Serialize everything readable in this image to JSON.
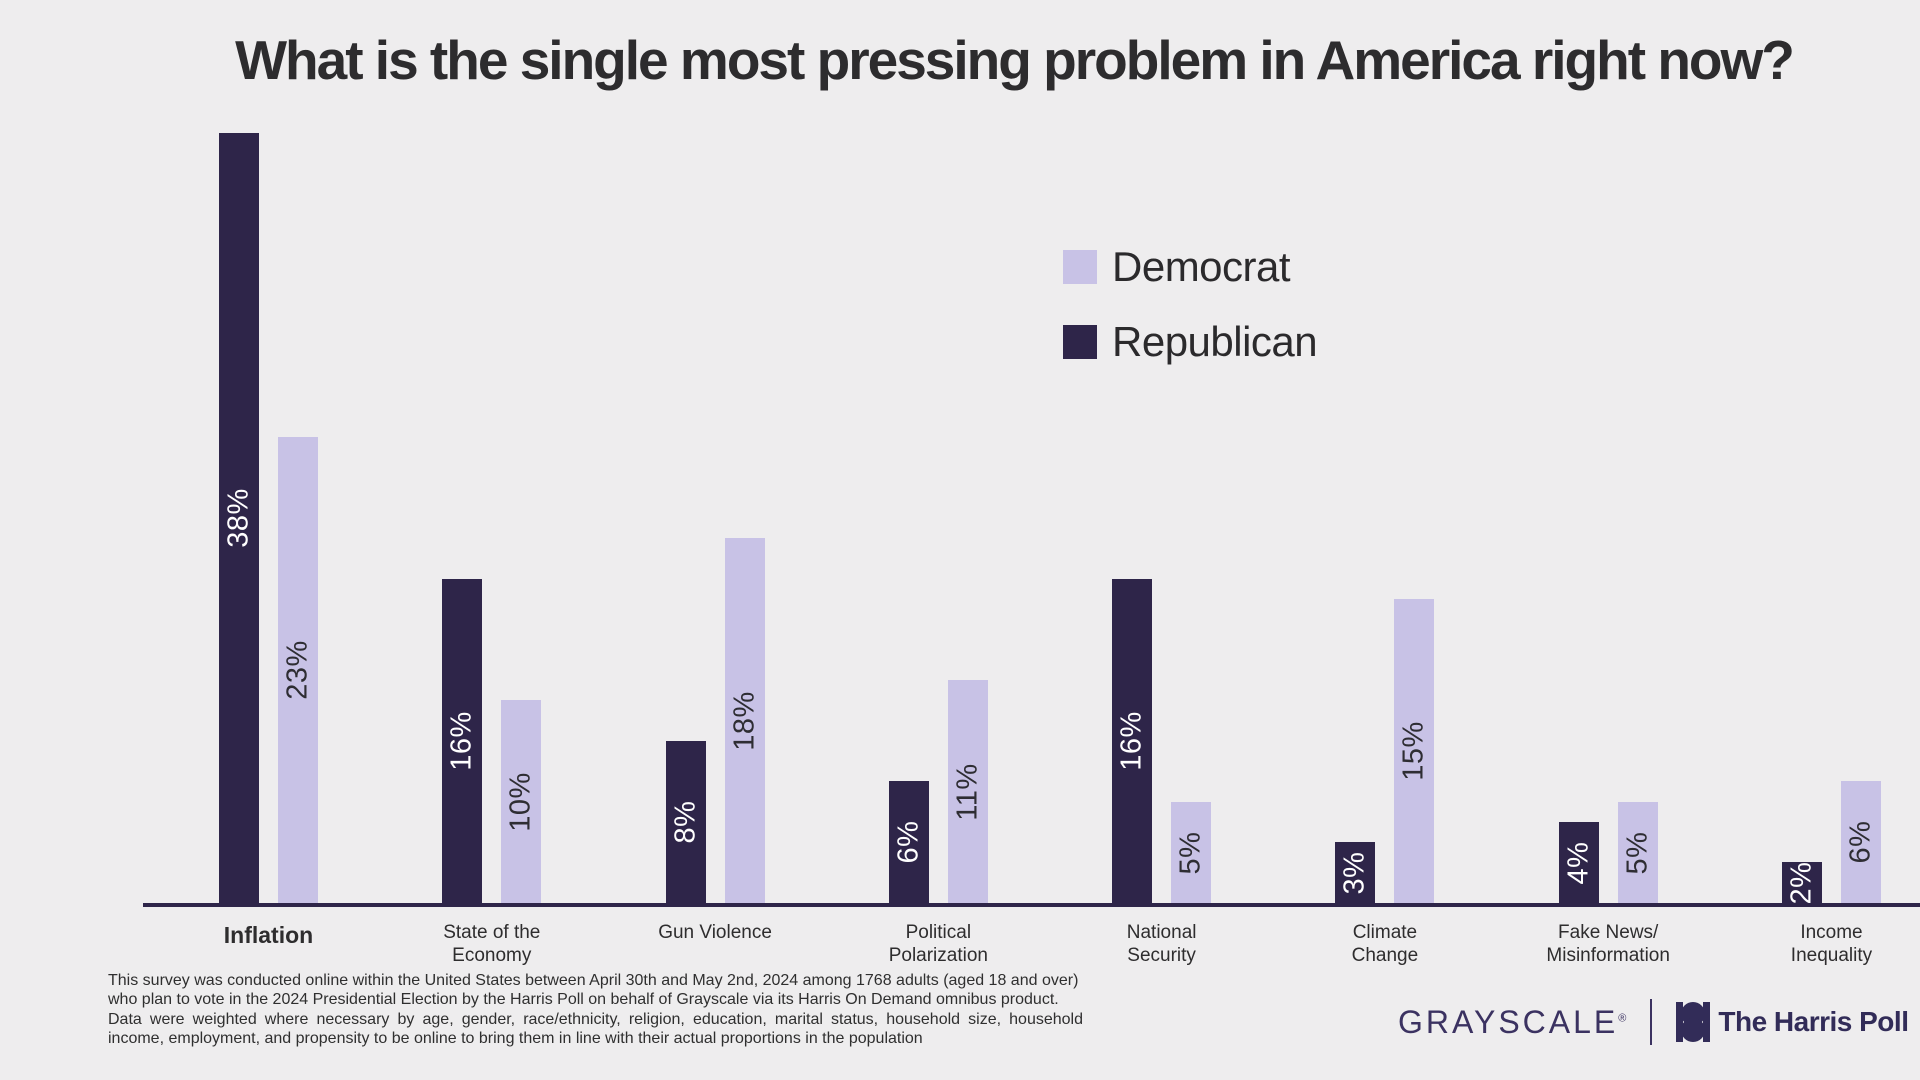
{
  "title": "What is the single most pressing problem in America right now?",
  "legend": {
    "items": [
      {
        "label": "Democrat",
        "color": "#c8c2e6"
      },
      {
        "label": "Republican",
        "color": "#2e2549"
      }
    ]
  },
  "chart_data": {
    "type": "bar",
    "title": "What is the single most pressing problem in America right now?",
    "categories": [
      "Inflation",
      "State of the\nEconomy",
      "Gun Violence",
      "Political\nPolarization",
      "National\nSecurity",
      "Climate\nChange",
      "Fake News/\nMisinformation",
      "Income\nInequality"
    ],
    "series": [
      {
        "name": "Republican",
        "color": "#2e2549",
        "label_color": "#ffffff",
        "values": [
          38,
          16,
          8,
          6,
          16,
          3,
          4,
          2
        ]
      },
      {
        "name": "Democrat",
        "color": "#c8c2e6",
        "label_color": "#2e2d33",
        "values": [
          23,
          10,
          18,
          11,
          5,
          15,
          5,
          6
        ]
      }
    ],
    "value_suffix": "%",
    "value_label_rotation_deg": -90,
    "ylim": [
      0,
      38
    ],
    "grid": false,
    "axis_line_color": "#2e2549",
    "legend_position": "upper-right",
    "legend_order": [
      "Democrat",
      "Republican"
    ],
    "emphasized_category": "Inflation"
  },
  "footnote": {
    "lines": [
      "This survey was conducted online within the United States between April 30th and May 2nd, 2024 among 1768 adults (aged 18 and over)",
      "who plan to vote in the 2024 Presidential Election by the Harris Poll on behalf of Grayscale via its Harris On Demand omnibus product.",
      "Data were weighted where necessary by age, gender, race/ethnicity, religion, education, marital status, household size, household",
      "income, employment, and propensity to be online to bring them in line with their actual proportions in the population"
    ]
  },
  "branding": {
    "grayscale_label": "GRAYSCALE",
    "registered_mark": "®",
    "harris_poll_label": "The Harris Poll"
  },
  "colors": {
    "background": "#eeedee",
    "democrat": "#c8c2e6",
    "republican": "#2e2549",
    "text": "#2d2c2e"
  }
}
